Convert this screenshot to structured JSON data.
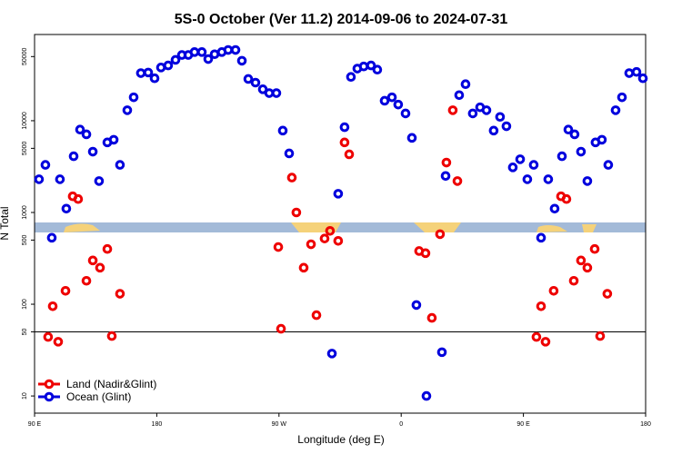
{
  "chart_data": {
    "type": "scatter",
    "title": "5S-0 October (Ver 11.2)   2014-09-06 to 2024-07-31",
    "x_label": "Longitude (deg E)",
    "y_label": "N Total",
    "yscale": "log",
    "xlim": [
      90,
      540
    ],
    "xticks": [
      {
        "value": 90,
        "label": "90 E"
      },
      180,
      {
        "value": 270,
        "label": "90 W"
      },
      {
        "value": 360,
        "label": "0"
      },
      {
        "value": 450,
        "label": "90 E"
      },
      {
        "value": 540,
        "label": "180"
      }
    ],
    "ylim": [
      6.5,
      87000
    ],
    "yticks": [
      10,
      50,
      100,
      500,
      1000,
      5000,
      10000,
      50000
    ],
    "hline": 50,
    "legend": "bottom-left",
    "series": [
      {
        "name": "Land (Nadir&Glint)",
        "color": "#ee0000",
        "x": [
          100.0,
          103.4,
          107.4,
          112.8,
          118.1,
          122.1,
          128.2,
          132.9,
          138.2,
          143.6,
          146.9,
          152.9,
          269.5,
          271.5,
          279.5,
          282.8,
          288.2,
          293.6,
          297.6,
          303.6,
          307.6,
          313.6,
          318.3,
          321.7,
          373.2,
          377.9,
          382.6,
          388.6,
          393.3,
          398.0,
          401.4,
          459.6,
          463.0,
          466.3,
          472.3,
          477.7,
          481.7,
          487.1,
          492.4,
          497.1,
          502.5,
          506.5,
          511.8
        ],
        "values": [
          44,
          95,
          39,
          140,
          1500,
          1400,
          180,
          300,
          250,
          400,
          45,
          130,
          420,
          54,
          2400,
          1000,
          250,
          450,
          76,
          520,
          630,
          490,
          5800,
          4300,
          380,
          360,
          71,
          580,
          3500,
          13000,
          2200,
          44,
          95,
          39,
          140,
          1500,
          1400,
          180,
          300,
          250,
          400,
          45,
          130
        ]
      },
      {
        "name": "Ocean (Glint)",
        "color": "#0000dd",
        "x": [
          93.3,
          98.0,
          102.7,
          108.7,
          113.4,
          118.8,
          123.5,
          128.2,
          132.9,
          137.5,
          143.6,
          148.3,
          152.9,
          158.3,
          163.0,
          168.3,
          173.7,
          178.4,
          183.1,
          188.4,
          193.8,
          198.5,
          203.2,
          207.8,
          213.2,
          217.9,
          222.6,
          227.9,
          232.6,
          238.0,
          242.7,
          247.4,
          252.7,
          258.1,
          262.8,
          268.1,
          272.8,
          277.5,
          309.0,
          313.6,
          318.3,
          323.0,
          327.7,
          332.4,
          337.8,
          342.4,
          347.8,
          353.2,
          357.8,
          363.2,
          367.9,
          371.2,
          378.6,
          390.0,
          392.7,
          402.7,
          407.4,
          412.7,
          418.1,
          422.8,
          428.1,
          432.8,
          437.5,
          442.2,
          447.6,
          452.9,
          457.6,
          463.0,
          468.3,
          473.0,
          478.4,
          483.1,
          487.7,
          492.4,
          497.1,
          503.1,
          507.8,
          512.5,
          517.9,
          522.6,
          527.9,
          533.3,
          538.0
        ],
        "values": [
          2300,
          3300,
          530,
          2300,
          1100,
          4100,
          8000,
          7100,
          4600,
          2200,
          5800,
          6200,
          3300,
          13000,
          18000,
          33000,
          33500,
          29000,
          38000,
          40000,
          46000,
          52000,
          52000,
          56000,
          56000,
          47000,
          53000,
          56000,
          59000,
          59000,
          45000,
          28500,
          26000,
          22000,
          20000,
          20000,
          7800,
          4400,
          29,
          1600,
          8500,
          30000,
          37000,
          39000,
          40000,
          36000,
          16500,
          18000,
          15000,
          12000,
          6500,
          98,
          10,
          30,
          2500,
          19000,
          25000,
          12000,
          14000,
          13000,
          7800,
          11000,
          8700,
          3100,
          3800,
          2300,
          3300,
          530,
          2300,
          1100,
          4100,
          8000,
          7100,
          4600,
          2200,
          5800,
          6200,
          3300,
          13000,
          18000,
          33000,
          34000,
          29000
        ]
      }
    ]
  }
}
